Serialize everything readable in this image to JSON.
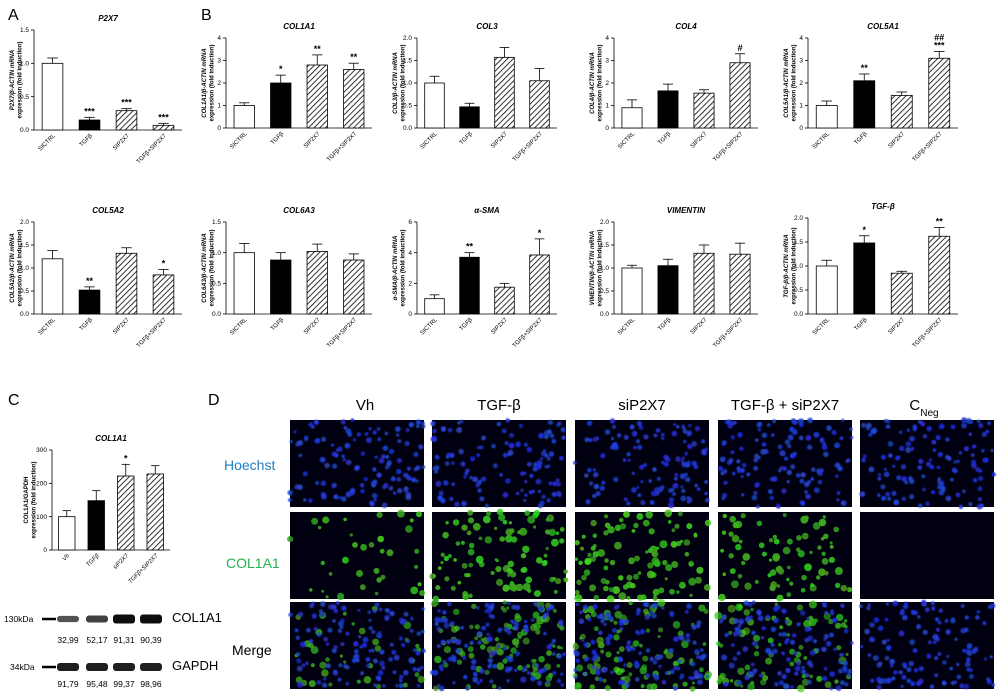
{
  "panel_labels": {
    "a": "A",
    "b": "B",
    "c": "C",
    "d": "D"
  },
  "colors": {
    "hoechst": "#1f7fc4",
    "col1a1": "#22b14c",
    "bar_black": "#000000",
    "bar_white": "#ffffff",
    "nuclei": "#1530d8",
    "green": "#3dc42a"
  },
  "chart_data": [
    {
      "id": "p2x7",
      "type": "bar",
      "title": "P2X7",
      "ylabel": "P2X7/β-ACTIN mRNA expression (fold induction)",
      "categories": [
        "SICTRL",
        "TGFβ",
        "SIP2X7",
        "TGFβ+SIP2X7"
      ],
      "values": [
        1.0,
        0.15,
        0.29,
        0.07
      ],
      "errors": [
        0.08,
        0.04,
        0.03,
        0.03
      ],
      "ylim": [
        0,
        1.5
      ],
      "yticks": [
        "0.0",
        "0.5",
        "1.0",
        "1.5"
      ],
      "significance": [
        "",
        "***",
        "***",
        "***"
      ]
    },
    {
      "id": "col1a1",
      "type": "bar",
      "title": "COL1A1",
      "ylabel": "COL1A1/β-ACTIN mRNA expression (fold induction)",
      "categories": [
        "SICTRL",
        "TGFβ",
        "SIP2X7",
        "TGFβ+SIP2X7"
      ],
      "values": [
        1.0,
        2.0,
        2.8,
        2.6
      ],
      "errors": [
        0.12,
        0.35,
        0.45,
        0.28
      ],
      "ylim": [
        0,
        4
      ],
      "yticks": [
        "0",
        "1",
        "2",
        "3",
        "4"
      ],
      "significance": [
        "",
        "*",
        "**",
        "**"
      ]
    },
    {
      "id": "col3",
      "type": "bar",
      "title": "COL3",
      "ylabel": "COL3/β-ACTIN mRNA expression (fold induction)",
      "categories": [
        "SICTRL",
        "TGFβ",
        "SIP2X7",
        "TGFβ+SIP2X7"
      ],
      "values": [
        1.0,
        0.47,
        1.57,
        1.05
      ],
      "errors": [
        0.15,
        0.08,
        0.22,
        0.27
      ],
      "ylim": [
        0,
        2
      ],
      "yticks": [
        "0.0",
        "0.5",
        "1.0",
        "1.5",
        "2.0"
      ],
      "significance": [
        "",
        "",
        "",
        ""
      ]
    },
    {
      "id": "col4",
      "type": "bar",
      "title": "COL4",
      "ylabel": "COL4/β-ACTIN mRNA expression (fold induction)",
      "categories": [
        "SICTRL",
        "TGFβ",
        "SIP2X7",
        "TGFβ+SIP2X7"
      ],
      "values": [
        0.9,
        1.65,
        1.55,
        2.9
      ],
      "errors": [
        0.35,
        0.3,
        0.15,
        0.4
      ],
      "ylim": [
        0,
        4
      ],
      "yticks": [
        "0",
        "1",
        "2",
        "3",
        "4"
      ],
      "significance": [
        "",
        "",
        "",
        "#"
      ]
    },
    {
      "id": "col5a1",
      "type": "bar",
      "title": "COL5A1",
      "ylabel": "COL5A1/β-ACTIN mRNA expression (fold induction)",
      "categories": [
        "SICTRL",
        "TGFβ",
        "SIP2X7",
        "TGFβ+SIP2X7"
      ],
      "values": [
        1.0,
        2.1,
        1.45,
        3.1
      ],
      "errors": [
        0.2,
        0.3,
        0.15,
        0.3
      ],
      "ylim": [
        0,
        4
      ],
      "yticks": [
        "0",
        "1",
        "2",
        "3",
        "4"
      ],
      "significance": [
        "",
        "**",
        "",
        "***"
      ],
      "significance2": [
        "",
        "",
        "",
        "##"
      ]
    },
    {
      "id": "col5a2",
      "type": "bar",
      "title": "COL5A2",
      "ylabel": "COL5A2/β-ACTIN mRNA expression (fold induction)",
      "categories": [
        "SICTRL",
        "TGFβ",
        "SIP2X7",
        "TGFβ+SIP2X7"
      ],
      "values": [
        1.2,
        0.52,
        1.32,
        0.85
      ],
      "errors": [
        0.18,
        0.07,
        0.12,
        0.12
      ],
      "ylim": [
        0,
        2
      ],
      "yticks": [
        "0.0",
        "0.5",
        "1.0",
        "1.5",
        "2.0"
      ],
      "significance": [
        "",
        "**",
        "",
        "*"
      ]
    },
    {
      "id": "col6a3",
      "type": "bar",
      "title": "COL6A3",
      "ylabel": "COL6A3/β-ACTIN mRNA expression (fold induction)",
      "categories": [
        "SICTRL",
        "TGFβ",
        "SIP2X7",
        "TGFβ+SIP2X7"
      ],
      "values": [
        1.0,
        0.88,
        1.02,
        0.88
      ],
      "errors": [
        0.15,
        0.12,
        0.12,
        0.1
      ],
      "ylim": [
        0,
        1.5
      ],
      "yticks": [
        "0.0",
        "0.5",
        "1.0",
        "1.5"
      ],
      "significance": [
        "",
        "",
        "",
        ""
      ]
    },
    {
      "id": "asma",
      "type": "bar",
      "title": "α-SMA",
      "ylabel": "α-SMA/β-ACTIN mRNA expression (fold induction)",
      "categories": [
        "SICTRL",
        "TGFβ",
        "SIP2X7",
        "TGFβ+SIP2X7"
      ],
      "values": [
        1.0,
        3.7,
        1.75,
        3.85
      ],
      "errors": [
        0.25,
        0.3,
        0.25,
        1.05
      ],
      "ylim": [
        0,
        6
      ],
      "yticks": [
        "0",
        "2",
        "4",
        "6"
      ],
      "significance": [
        "",
        "**",
        "",
        "*"
      ]
    },
    {
      "id": "vimentin",
      "type": "bar",
      "title": "VIMENTIN",
      "ylabel": "VIMENTIN/β-ACTIN mRNA expression (fold induction)",
      "categories": [
        "SICTRL",
        "TGFβ",
        "SIP2X7",
        "TGFβ+SIP2X7"
      ],
      "values": [
        1.0,
        1.05,
        1.32,
        1.3
      ],
      "errors": [
        0.06,
        0.14,
        0.18,
        0.24
      ],
      "ylim": [
        0,
        2
      ],
      "yticks": [
        "0.0",
        "0.5",
        "1.0",
        "1.5",
        "2.0"
      ],
      "significance": [
        "",
        "",
        "",
        ""
      ]
    },
    {
      "id": "tgfb",
      "type": "bar",
      "title": "TGF-β",
      "ylabel": "TGF-β/β-ACTIN mRNA expression (fold induction)",
      "categories": [
        "SICTRL",
        "TGFβ",
        "SIP2X7",
        "TGFβ+SIP2X7"
      ],
      "values": [
        1.0,
        1.48,
        0.85,
        1.62
      ],
      "errors": [
        0.12,
        0.15,
        0.04,
        0.18
      ],
      "ylim": [
        0,
        2
      ],
      "yticks": [
        "0.0",
        "0.5",
        "1.0",
        "1.5",
        "2.0"
      ],
      "significance": [
        "",
        "*",
        "",
        "**"
      ]
    },
    {
      "id": "wb_col1a1",
      "type": "bar",
      "title": "COL1A1",
      "ylabel": "COL1A1/GAPDH expression (fold induction)",
      "categories": [
        "Vh",
        "TGFβ",
        "siP2X7",
        "TGFβ+SIP2X7"
      ],
      "values": [
        100,
        148,
        222,
        228
      ],
      "errors": [
        18,
        30,
        35,
        25
      ],
      "ylim": [
        0,
        300
      ],
      "yticks": [
        "0",
        "100",
        "200",
        "300"
      ],
      "significance": [
        "",
        "",
        "*",
        ""
      ]
    }
  ],
  "western_blot": {
    "markers": [
      "130kDa",
      "34kDa"
    ],
    "bands": [
      "COL1A1",
      "GAPDH"
    ],
    "col1a1_values": [
      "32,99",
      "52,17",
      "91,31",
      "90,39"
    ],
    "gapdh_values": [
      "91,79",
      "95,48",
      "99,37",
      "98,96"
    ]
  },
  "microscopy": {
    "columns": [
      "Vh",
      "TGF-β",
      "siP2X7",
      "TGF-β + siP2X7"
    ],
    "cneg_base": "C",
    "cneg_sub": "Neg",
    "rows": [
      "Hoechst",
      "COL1A1",
      "Merge"
    ]
  }
}
